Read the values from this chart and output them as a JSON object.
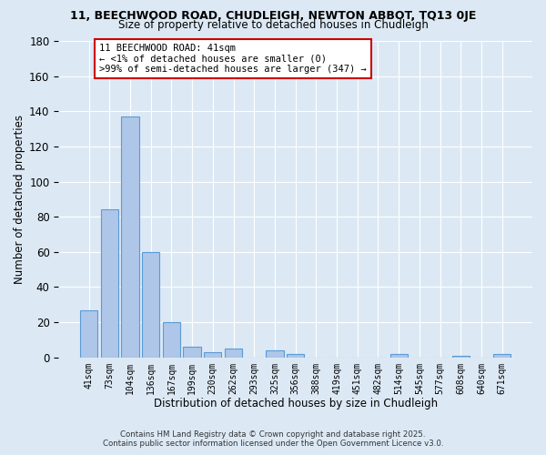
{
  "title1": "11, BEECHWOOD ROAD, CHUDLEIGH, NEWTON ABBOT, TQ13 0JE",
  "title2": "Size of property relative to detached houses in Chudleigh",
  "xlabel": "Distribution of detached houses by size in Chudleigh",
  "ylabel": "Number of detached properties",
  "bar_labels": [
    "41sqm",
    "73sqm",
    "104sqm",
    "136sqm",
    "167sqm",
    "199sqm",
    "230sqm",
    "262sqm",
    "293sqm",
    "325sqm",
    "356sqm",
    "388sqm",
    "419sqm",
    "451sqm",
    "482sqm",
    "514sqm",
    "545sqm",
    "577sqm",
    "608sqm",
    "640sqm",
    "671sqm"
  ],
  "bar_values": [
    27,
    84,
    137,
    60,
    20,
    6,
    3,
    5,
    0,
    4,
    2,
    0,
    0,
    0,
    0,
    2,
    0,
    0,
    1,
    0,
    2
  ],
  "bar_color": "#aec6e8",
  "bar_edge_color": "#5b9bd5",
  "highlight_line_color": "#cc0000",
  "annotation_text": "11 BEECHWOOD ROAD: 41sqm\n← <1% of detached houses are smaller (0)\n>99% of semi-detached houses are larger (347) →",
  "annotation_box_color": "#ffffff",
  "annotation_box_edge": "#cc0000",
  "ylim": [
    0,
    180
  ],
  "yticks": [
    0,
    20,
    40,
    60,
    80,
    100,
    120,
    140,
    160,
    180
  ],
  "bg_color": "#dce9f5",
  "plot_bg_color": "#dce9f5",
  "grid_color": "#ffffff",
  "footer_line1": "Contains HM Land Registry data © Crown copyright and database right 2025.",
  "footer_line2": "Contains public sector information licensed under the Open Government Licence v3.0."
}
